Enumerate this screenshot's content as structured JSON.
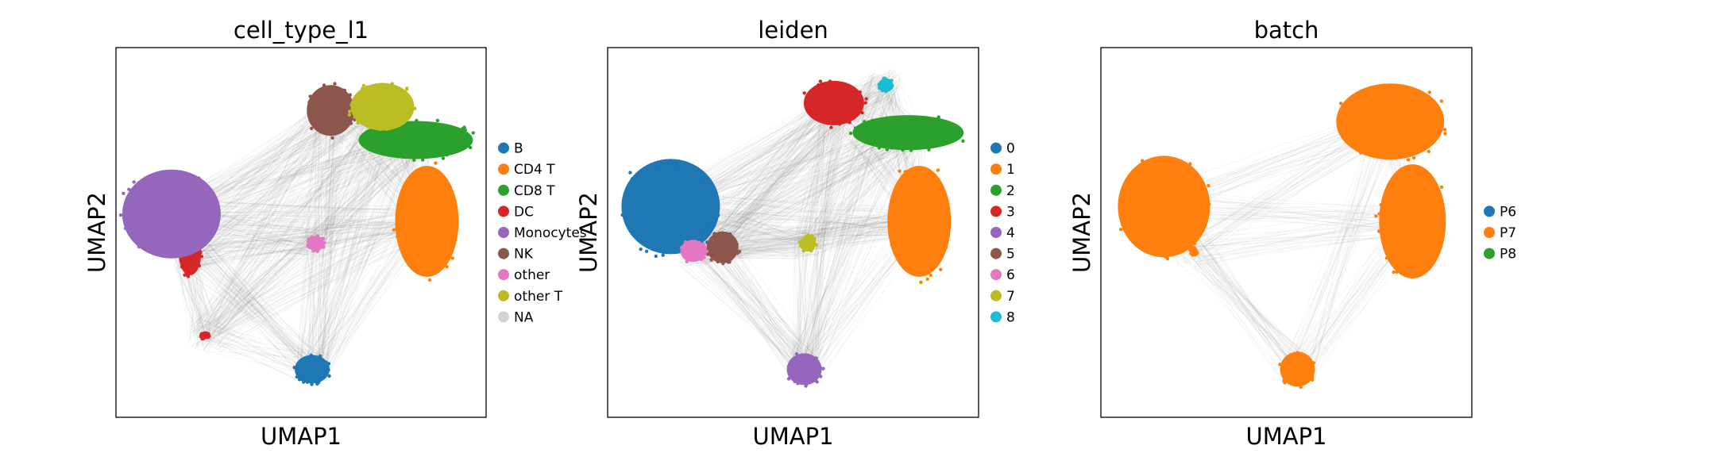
{
  "chart_data": [
    {
      "type": "scatter",
      "title": "cell_type_l1",
      "xlabel": "UMAP1",
      "ylabel": "UMAP2",
      "grid": false,
      "ticks": false,
      "legend_position": "right",
      "legend": [
        {
          "label": "B",
          "color": "#1f77b4"
        },
        {
          "label": "CD4 T",
          "color": "#ff7f0e"
        },
        {
          "label": "CD8 T",
          "color": "#2ca02c"
        },
        {
          "label": "DC",
          "color": "#d62728"
        },
        {
          "label": "Monocytes",
          "color": "#9467bd"
        },
        {
          "label": "NK",
          "color": "#8c564b"
        },
        {
          "label": "other",
          "color": "#e377c2"
        },
        {
          "label": "other T",
          "color": "#bcbd22"
        },
        {
          "label": "NA",
          "color": "#d3d3d3"
        }
      ],
      "clusters": [
        {
          "label": "B",
          "x": 0.53,
          "y": 0.13
        },
        {
          "label": "CD4 T",
          "x": 0.84,
          "y": 0.53
        },
        {
          "label": "CD8 T",
          "x": 0.81,
          "y": 0.75
        },
        {
          "label": "DC",
          "x": 0.2,
          "y": 0.44
        },
        {
          "label": "Monocytes",
          "x": 0.15,
          "y": 0.55
        },
        {
          "label": "NK",
          "x": 0.58,
          "y": 0.83
        },
        {
          "label": "other",
          "x": 0.54,
          "y": 0.47
        },
        {
          "label": "other T",
          "x": 0.72,
          "y": 0.84
        },
        {
          "label": "DC",
          "x": 0.24,
          "y": 0.22
        }
      ]
    },
    {
      "type": "scatter",
      "title": "leiden",
      "xlabel": "UMAP1",
      "ylabel": "UMAP2",
      "grid": false,
      "ticks": false,
      "legend_position": "right",
      "legend": [
        {
          "label": "0",
          "color": "#1f77b4"
        },
        {
          "label": "1",
          "color": "#ff7f0e"
        },
        {
          "label": "2",
          "color": "#2ca02c"
        },
        {
          "label": "3",
          "color": "#d62728"
        },
        {
          "label": "4",
          "color": "#9467bd"
        },
        {
          "label": "5",
          "color": "#8c564b"
        },
        {
          "label": "6",
          "color": "#e377c2"
        },
        {
          "label": "7",
          "color": "#bcbd22"
        },
        {
          "label": "8",
          "color": "#17becf"
        }
      ],
      "clusters": [
        {
          "label": "0",
          "x": 0.17,
          "y": 0.57
        },
        {
          "label": "1",
          "x": 0.84,
          "y": 0.53
        },
        {
          "label": "2",
          "x": 0.81,
          "y": 0.77
        },
        {
          "label": "3",
          "x": 0.61,
          "y": 0.85
        },
        {
          "label": "4",
          "x": 0.53,
          "y": 0.13
        },
        {
          "label": "5",
          "x": 0.31,
          "y": 0.46
        },
        {
          "label": "6",
          "x": 0.23,
          "y": 0.45
        },
        {
          "label": "7",
          "x": 0.54,
          "y": 0.47
        },
        {
          "label": "8",
          "x": 0.75,
          "y": 0.9
        }
      ]
    },
    {
      "type": "scatter",
      "title": "batch",
      "xlabel": "UMAP1",
      "ylabel": "UMAP2",
      "grid": false,
      "ticks": false,
      "legend_position": "right",
      "legend": [
        {
          "label": "P6",
          "color": "#1f77b4"
        },
        {
          "label": "P7",
          "color": "#ff7f0e"
        },
        {
          "label": "P8",
          "color": "#2ca02c"
        }
      ],
      "clusters": [
        {
          "label": "P7",
          "x": 0.17,
          "y": 0.57
        },
        {
          "label": "P7",
          "x": 0.84,
          "y": 0.53
        },
        {
          "label": "P7",
          "x": 0.78,
          "y": 0.8
        },
        {
          "label": "P7",
          "x": 0.53,
          "y": 0.13
        },
        {
          "label": "P7",
          "x": 0.25,
          "y": 0.45
        }
      ]
    }
  ]
}
